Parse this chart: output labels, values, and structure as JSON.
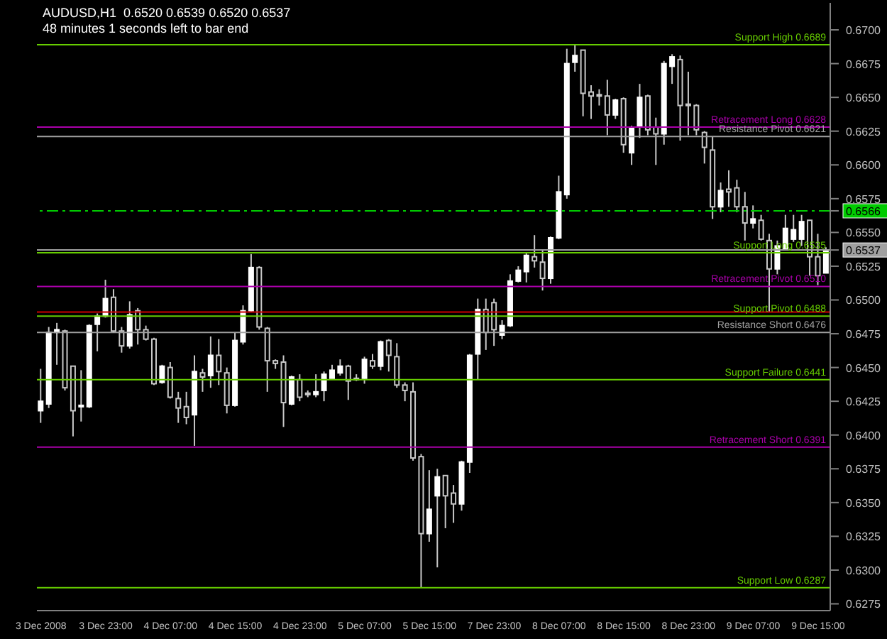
{
  "chart_data": {
    "type": "candlestick",
    "title": "AUDUSD,H1  0.6520 0.6539 0.6520 0.6537",
    "subtitle": "48 minutes 1 seconds left to bar end",
    "categories": [
      "3 Dec 2008",
      null,
      null,
      null,
      null,
      null,
      null,
      null,
      "3 Dec 23:00",
      null,
      null,
      null,
      null,
      null,
      null,
      null,
      "4 Dec 07:00",
      null,
      null,
      null,
      null,
      null,
      null,
      null,
      "4 Dec 15:00",
      null,
      null,
      null,
      null,
      null,
      null,
      null,
      "4 Dec 23:00",
      null,
      null,
      null,
      null,
      null,
      null,
      null,
      "5 Dec 07:00",
      null,
      null,
      null,
      null,
      null,
      null,
      null,
      "5 Dec 15:00",
      null,
      null,
      null,
      null,
      null,
      null,
      null,
      "7 Dec 23:00",
      null,
      null,
      null,
      null,
      null,
      null,
      null,
      "8 Dec 07:00",
      null,
      null,
      null,
      null,
      null,
      null,
      null,
      "8 Dec 15:00",
      null,
      null,
      null,
      null,
      null,
      null,
      null,
      "8 Dec 23:00",
      null,
      null,
      null,
      null,
      null,
      null,
      null,
      "9 Dec 07:00",
      null,
      null,
      null,
      null,
      null,
      null,
      null,
      "9 Dec 15:00",
      null
    ],
    "ohlc": [
      [
        0.6418,
        0.6449,
        0.6409,
        0.6425
      ],
      [
        0.6423,
        0.648,
        0.642,
        0.6476
      ],
      [
        0.6476,
        0.6483,
        0.6452,
        0.6478
      ],
      [
        0.6477,
        0.6478,
        0.6433,
        0.6435
      ],
      [
        0.6451,
        0.6451,
        0.6399,
        0.6418
      ],
      [
        0.6421,
        0.6448,
        0.641,
        0.6422
      ],
      [
        0.6421,
        0.6482,
        0.642,
        0.6481
      ],
      [
        0.6482,
        0.649,
        0.6462,
        0.6488
      ],
      [
        0.6488,
        0.6515,
        0.6487,
        0.6501
      ],
      [
        0.6502,
        0.6508,
        0.6476,
        0.6477
      ],
      [
        0.6477,
        0.648,
        0.6461,
        0.6466
      ],
      [
        0.6466,
        0.6499,
        0.6464,
        0.6489
      ],
      [
        0.6492,
        0.6494,
        0.6467,
        0.6478
      ],
      [
        0.6478,
        0.6481,
        0.647,
        0.6471
      ],
      [
        0.6471,
        0.6472,
        0.6437,
        0.6438
      ],
      [
        0.6439,
        0.6452,
        0.6438,
        0.6451
      ],
      [
        0.645,
        0.6454,
        0.6427,
        0.6428
      ],
      [
        0.6427,
        0.6432,
        0.6409,
        0.642
      ],
      [
        0.6421,
        0.6432,
        0.6408,
        0.6413
      ],
      [
        0.6415,
        0.6459,
        0.6392,
        0.6447
      ],
      [
        0.6446,
        0.6449,
        0.6432,
        0.6443
      ],
      [
        0.6444,
        0.6473,
        0.6435,
        0.6459
      ],
      [
        0.6459,
        0.6471,
        0.6437,
        0.6447
      ],
      [
        0.6446,
        0.645,
        0.6416,
        0.6422
      ],
      [
        0.6422,
        0.6476,
        0.6421,
        0.647
      ],
      [
        0.6469,
        0.6496,
        0.6467,
        0.6492
      ],
      [
        0.6492,
        0.6534,
        0.6491,
        0.6524
      ],
      [
        0.6524,
        0.6525,
        0.6478,
        0.648
      ],
      [
        0.6479,
        0.648,
        0.6432,
        0.6455
      ],
      [
        0.6455,
        0.6456,
        0.6449,
        0.6453
      ],
      [
        0.6454,
        0.6459,
        0.6406,
        0.6424
      ],
      [
        0.6423,
        0.6444,
        0.6422,
        0.6443
      ],
      [
        0.6441,
        0.6445,
        0.6425,
        0.6428
      ],
      [
        0.6431,
        0.6433,
        0.6428,
        0.643
      ],
      [
        0.643,
        0.6445,
        0.6428,
        0.6432
      ],
      [
        0.6433,
        0.6447,
        0.6425,
        0.6445
      ],
      [
        0.6442,
        0.6452,
        0.6442,
        0.6448
      ],
      [
        0.6446,
        0.6456,
        0.6444,
        0.6451
      ],
      [
        0.6451,
        0.6452,
        0.6426,
        0.644
      ],
      [
        0.6442,
        0.6445,
        0.644,
        0.6441
      ],
      [
        0.6442,
        0.6458,
        0.6438,
        0.6456
      ],
      [
        0.6455,
        0.646,
        0.6449,
        0.6451
      ],
      [
        0.6451,
        0.647,
        0.6448,
        0.6469
      ],
      [
        0.647,
        0.6471,
        0.6447,
        0.6459
      ],
      [
        0.6458,
        0.6468,
        0.6435,
        0.6437
      ],
      [
        0.6437,
        0.6439,
        0.6425,
        0.6433
      ],
      [
        0.6432,
        0.6439,
        0.6381,
        0.6383
      ],
      [
        0.6384,
        0.6386,
        0.6287,
        0.6327
      ],
      [
        0.6327,
        0.6374,
        0.6321,
        0.6345
      ],
      [
        0.6355,
        0.6375,
        0.6302,
        0.6369
      ],
      [
        0.637,
        0.637,
        0.6331,
        0.6355
      ],
      [
        0.6357,
        0.6363,
        0.6335,
        0.6349
      ],
      [
        0.6349,
        0.6381,
        0.6344,
        0.638
      ],
      [
        0.638,
        0.646,
        0.6372,
        0.6459
      ],
      [
        0.646,
        0.6501,
        0.6441,
        0.6493
      ],
      [
        0.6493,
        0.6501,
        0.6463,
        0.6476
      ],
      [
        0.6498,
        0.6501,
        0.6466,
        0.6478
      ],
      [
        0.6474,
        0.6485,
        0.6471,
        0.6481
      ],
      [
        0.6481,
        0.6519,
        0.648,
        0.6514
      ],
      [
        0.6514,
        0.6525,
        0.6513,
        0.6522
      ],
      [
        0.6521,
        0.6535,
        0.6513,
        0.6533
      ],
      [
        0.6532,
        0.6548,
        0.6524,
        0.6529
      ],
      [
        0.6528,
        0.6537,
        0.6507,
        0.6516
      ],
      [
        0.6516,
        0.6547,
        0.6512,
        0.6546
      ],
      [
        0.6546,
        0.6592,
        0.6545,
        0.658
      ],
      [
        0.6578,
        0.6686,
        0.6575,
        0.6675
      ],
      [
        0.6676,
        0.6689,
        0.6669,
        0.6681
      ],
      [
        0.6685,
        0.6685,
        0.6636,
        0.6653
      ],
      [
        0.6654,
        0.6659,
        0.6634,
        0.6651
      ],
      [
        0.6652,
        0.6656,
        0.6644,
        0.6651
      ],
      [
        0.6651,
        0.6663,
        0.6622,
        0.6637
      ],
      [
        0.6637,
        0.6649,
        0.6634,
        0.6648
      ],
      [
        0.6649,
        0.665,
        0.6609,
        0.6615
      ],
      [
        0.6609,
        0.6629,
        0.66,
        0.6627
      ],
      [
        0.6628,
        0.666,
        0.662,
        0.665
      ],
      [
        0.6651,
        0.6652,
        0.6622,
        0.6626
      ],
      [
        0.6628,
        0.6635,
        0.66,
        0.6623
      ],
      [
        0.6623,
        0.6677,
        0.6615,
        0.6675
      ],
      [
        0.6673,
        0.6682,
        0.666,
        0.668
      ],
      [
        0.6678,
        0.6681,
        0.6618,
        0.6644
      ],
      [
        0.6645,
        0.6669,
        0.6622,
        0.6644
      ],
      [
        0.6644,
        0.6645,
        0.6622,
        0.6626
      ],
      [
        0.6624,
        0.6625,
        0.6601,
        0.6613
      ],
      [
        0.6611,
        0.6621,
        0.656,
        0.6569
      ],
      [
        0.6569,
        0.6587,
        0.6565,
        0.6581
      ],
      [
        0.6582,
        0.6596,
        0.6569,
        0.658
      ],
      [
        0.6583,
        0.6589,
        0.6565,
        0.6569
      ],
      [
        0.6569,
        0.658,
        0.6544,
        0.6557
      ],
      [
        0.6557,
        0.657,
        0.6553,
        0.656
      ],
      [
        0.6559,
        0.6563,
        0.6544,
        0.6545
      ],
      [
        0.6544,
        0.6549,
        0.6491,
        0.6523
      ],
      [
        0.6523,
        0.6544,
        0.6519,
        0.654
      ],
      [
        0.6538,
        0.6563,
        0.6537,
        0.6553
      ],
      [
        0.6545,
        0.6563,
        0.6543,
        0.6552
      ],
      [
        0.6545,
        0.6563,
        0.654,
        0.6558
      ],
      [
        0.6559,
        0.6559,
        0.6518,
        0.6532
      ],
      [
        0.6532,
        0.6549,
        0.6511,
        0.6518
      ],
      [
        0.652,
        0.6539,
        0.652,
        0.6537
      ]
    ],
    "ylim": [
      0.627,
      0.672
    ],
    "yticks": [
      0.6275,
      {
        "value": 0.63,
        "label": "0.6300"
      },
      0.6325,
      {
        "value": 0.635,
        "label": "0.6350"
      },
      0.6375,
      {
        "value": 0.64,
        "label": "0.6400"
      },
      0.6425,
      {
        "value": 0.645,
        "label": "0.6450"
      },
      0.6475,
      {
        "value": 0.65,
        "label": "0.6500"
      },
      0.6525,
      {
        "value": 0.6537,
        "label": "0.6537"
      },
      {
        "value": 0.655,
        "label": "0.6550"
      },
      {
        "value": 0.6566,
        "label": "0.6566"
      },
      0.6575,
      {
        "value": 0.66,
        "label": "0.6600"
      },
      0.6625,
      {
        "value": 0.665,
        "label": "0.6650"
      },
      0.6675,
      {
        "value": 0.67,
        "label": "0.6700"
      }
    ],
    "ref_lines": [
      {
        "axis": "y",
        "value": 0.6689,
        "label": "Support High  0.6689",
        "color": "#66cc00"
      },
      {
        "axis": "y",
        "value": 0.6628,
        "label": "Retracement Long  0.6628",
        "color": "#aa00aa"
      },
      {
        "axis": "y",
        "value": 0.6621,
        "label": "Resistance Pivot  0.6621",
        "color": "#a0a0a0"
      },
      {
        "axis": "y",
        "value": 0.6566,
        "color": "#00cc00",
        "line_style": "dashed"
      },
      {
        "axis": "y",
        "value": 0.6537,
        "color": "#a0a0a0"
      },
      {
        "axis": "y",
        "value": 0.6535,
        "label": "Support Long  0.6535",
        "color": "#66cc00"
      },
      {
        "axis": "y",
        "value": 0.651,
        "label": "Retracement Pivot  0.6510",
        "color": "#aa00aa"
      },
      {
        "axis": "y",
        "value": 0.6491,
        "color": "#cc0000"
      },
      {
        "axis": "y",
        "value": 0.6488,
        "label": "Support Pivot  0.6488",
        "color": "#66cc00"
      },
      {
        "axis": "y",
        "value": 0.6476,
        "label": "Resistance Short  0.6476",
        "color": "#a0a0a0"
      },
      {
        "axis": "y",
        "value": 0.6441,
        "label": "Support Failure  0.6441",
        "color": "#66cc00"
      },
      {
        "axis": "y",
        "value": 0.6391,
        "label": "Retracement Short  0.6391",
        "color": "#aa00aa"
      },
      {
        "axis": "y",
        "value": 0.6287,
        "label": "Support Low  0.6287",
        "color": "#66cc00"
      }
    ]
  }
}
